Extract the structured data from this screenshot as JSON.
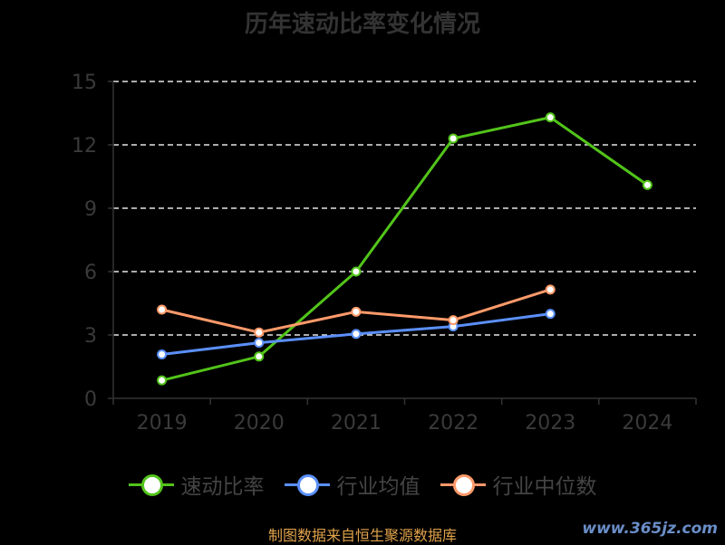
{
  "chart_data": {
    "type": "line",
    "title": "历年速动比率变化情况",
    "categories": [
      "2019",
      "2020",
      "2021",
      "2022",
      "2023",
      "2024"
    ],
    "ylim": [
      0,
      15
    ],
    "yticks": [
      0,
      3,
      6,
      9,
      12,
      15
    ],
    "grid": true,
    "legend_position": "bottom",
    "series": [
      {
        "name": "速动比率",
        "color": "#52c41a",
        "values": [
          0.85,
          1.98,
          6.0,
          12.3,
          13.3,
          10.1
        ]
      },
      {
        "name": "行业均值",
        "color": "#5b8ff9",
        "values": [
          2.08,
          2.63,
          3.05,
          3.4,
          4.0,
          null
        ]
      },
      {
        "name": "行业中位数",
        "color": "#ff9a6a",
        "values": [
          4.2,
          3.12,
          4.1,
          3.7,
          5.15,
          null
        ]
      }
    ]
  },
  "source": "制图数据来自恒生聚源数据库",
  "watermark": "www.365jz.com"
}
